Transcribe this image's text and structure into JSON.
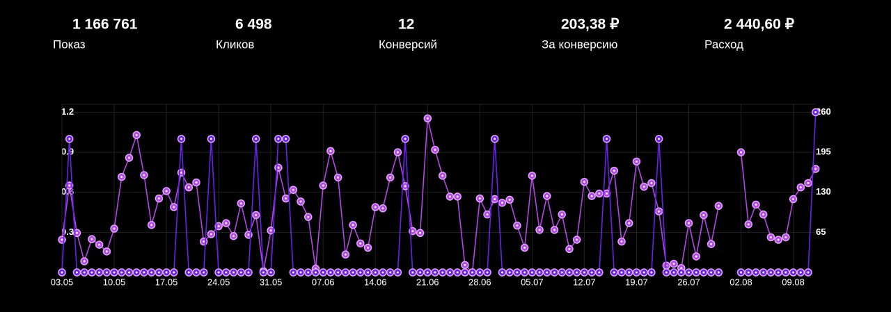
{
  "stats": [
    {
      "value": "1 166 761",
      "label": "Показ"
    },
    {
      "value": "6 498",
      "label": "Кликов"
    },
    {
      "value": "12",
      "label": "Конверсий"
    },
    {
      "value": "203,38 ₽",
      "label": "За конверсию"
    },
    {
      "value": "2 440,60 ₽",
      "label": "Расход"
    }
  ],
  "chart_data": {
    "type": "line",
    "x": [
      "03.05",
      null,
      null,
      null,
      null,
      null,
      null,
      "10.05",
      null,
      null,
      null,
      null,
      null,
      null,
      "17.05",
      null,
      null,
      null,
      null,
      null,
      null,
      "24.05",
      null,
      null,
      null,
      null,
      null,
      null,
      "31.05",
      null,
      null,
      null,
      null,
      null,
      null,
      "07.06",
      null,
      null,
      null,
      null,
      null,
      null,
      "14.06",
      null,
      null,
      null,
      null,
      null,
      null,
      "21.06",
      null,
      null,
      null,
      null,
      null,
      null,
      "28.06",
      null,
      null,
      null,
      null,
      null,
      null,
      "05.07",
      null,
      null,
      null,
      null,
      null,
      null,
      "12.07",
      null,
      null,
      null,
      null,
      null,
      null,
      "19.07",
      null,
      null,
      null,
      null,
      null,
      null,
      "26.07",
      null,
      null,
      null,
      null,
      null,
      null,
      "02.08",
      null,
      null,
      null,
      null,
      null,
      null,
      "09.08",
      null,
      null,
      null
    ],
    "series": [
      {
        "color": "#b447e6",
        "axis": "y2",
        "values": [
          53,
          141,
          64,
          18,
          54,
          45,
          34,
          71,
          155,
          186,
          223,
          158,
          77,
          120,
          132,
          106,
          162,
          138,
          146,
          50,
          62,
          75,
          80,
          59,
          112,
          61,
          93,
          2,
          68,
          170,
          120,
          134,
          115,
          90,
          6,
          141,
          197,
          154,
          29,
          77,
          47,
          40,
          106,
          104,
          154,
          195,
          140,
          67,
          64,
          250,
          199,
          157,
          123,
          123,
          12,
          0,
          120,
          94,
          119,
          113,
          118,
          76,
          40,
          157,
          69,
          124,
          69,
          94,
          38,
          53,
          147,
          124,
          128,
          128,
          165,
          50,
          80,
          180,
          139,
          145,
          99,
          11,
          14,
          7,
          80,
          26,
          93,
          46,
          108,
          null,
          null,
          195,
          78,
          110,
          94,
          57,
          53,
          57,
          119,
          138,
          145,
          168
        ]
      },
      {
        "color": "#6a22e8",
        "values": [
          0,
          1,
          0,
          0,
          0,
          0,
          0,
          0,
          0,
          0,
          0,
          0,
          0,
          0,
          0,
          0,
          1,
          0,
          0,
          0,
          1,
          0,
          0,
          0,
          0,
          0,
          1,
          0,
          0,
          1,
          1,
          0,
          0,
          0,
          0,
          0,
          0,
          0,
          0,
          0,
          0,
          0,
          0,
          0,
          0,
          0,
          1,
          0,
          0,
          0,
          0,
          0,
          0,
          0,
          0,
          0,
          0,
          0,
          1,
          0,
          0,
          0,
          0,
          0,
          0,
          0,
          0,
          0,
          0,
          0,
          0,
          0,
          0,
          1,
          0,
          0,
          0,
          0,
          0,
          0,
          1,
          0,
          0,
          0,
          0,
          0,
          0,
          0,
          0,
          null,
          null,
          0,
          0,
          0,
          0,
          0,
          0,
          0,
          0,
          0,
          0,
          1.2
        ]
      }
    ],
    "ylim": [
      0,
      1.26
    ],
    "yticks": [
      0.3,
      0.6,
      0.9,
      1.2
    ],
    "y2lim": [
      0,
      273
    ],
    "y2ticks": [
      65,
      130,
      195,
      260
    ],
    "grid": true
  }
}
